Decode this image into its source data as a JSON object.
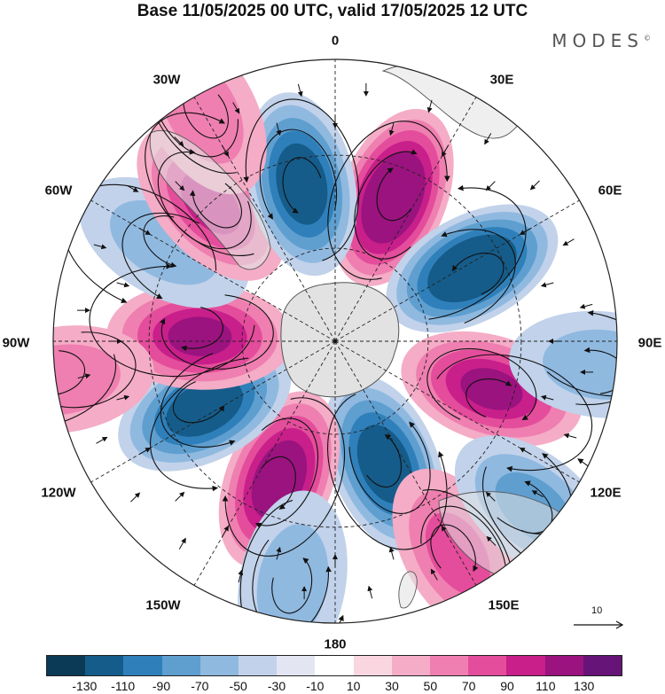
{
  "title": "Base 11/05/2025 00 UTC, valid 17/05/2025 12 UTC",
  "brand": "MODES",
  "brand_mark": "©",
  "map": {
    "projection": "south-polar-stereographic",
    "coastline_color": "#444444",
    "land_mask_color": "#dcdcdc",
    "longitude_labels": [
      {
        "key": "0",
        "text": "0"
      },
      {
        "key": "30E",
        "text": "30E"
      },
      {
        "key": "60E",
        "text": "60E"
      },
      {
        "key": "90E",
        "text": "90E"
      },
      {
        "key": "120E",
        "text": "120E"
      },
      {
        "key": "150E",
        "text": "150E"
      },
      {
        "key": "180",
        "text": "180"
      },
      {
        "key": "150W",
        "text": "150W"
      },
      {
        "key": "120W",
        "text": "120W"
      },
      {
        "key": "90W",
        "text": "90W"
      },
      {
        "key": "60W",
        "text": "60W"
      },
      {
        "key": "30W",
        "text": "30W"
      }
    ],
    "anomaly_centers": [
      {
        "sign": "positive",
        "bearing_deg": 22,
        "radius": 0.55,
        "magnitude": 130
      },
      {
        "sign": "negative",
        "bearing_deg": 62,
        "radius": 0.55,
        "magnitude": 130
      },
      {
        "sign": "positive",
        "bearing_deg": 107,
        "radius": 0.58,
        "magnitude": 90
      },
      {
        "sign": "negative",
        "bearing_deg": 158,
        "radius": 0.47,
        "magnitude": 110
      },
      {
        "sign": "positive",
        "bearing_deg": 150,
        "radius": 0.87,
        "magnitude": 50
      },
      {
        "sign": "positive",
        "bearing_deg": 202,
        "radius": 0.53,
        "magnitude": 110
      },
      {
        "sign": "negative",
        "bearing_deg": 190,
        "radius": 0.87,
        "magnitude": 30
      },
      {
        "sign": "negative",
        "bearing_deg": 243,
        "radius": 0.52,
        "magnitude": 110
      },
      {
        "sign": "positive",
        "bearing_deg": 272,
        "radius": 0.48,
        "magnitude": 90
      },
      {
        "sign": "negative",
        "bearing_deg": 300,
        "radius": 0.7,
        "magnitude": 30
      },
      {
        "sign": "positive",
        "bearing_deg": 318,
        "radius": 0.66,
        "magnitude": 70
      },
      {
        "sign": "negative",
        "bearing_deg": 348,
        "radius": 0.57,
        "magnitude": 110
      },
      {
        "sign": "negative",
        "bearing_deg": 95,
        "radius": 0.95,
        "magnitude": 30
      },
      {
        "sign": "negative",
        "bearing_deg": 130,
        "radius": 0.92,
        "magnitude": 50
      },
      {
        "sign": "positive",
        "bearing_deg": 262,
        "radius": 0.98,
        "magnitude": 30
      },
      {
        "sign": "positive",
        "bearing_deg": 330,
        "radius": 0.95,
        "magnitude": 30
      }
    ]
  },
  "reference_vector": {
    "label": "10"
  },
  "colorbar": {
    "colors": [
      "#0b3a56",
      "#155c8a",
      "#2f80ba",
      "#5f9fd0",
      "#90b9e0",
      "#c1d2ea",
      "#e3e6f2",
      "#ffffff",
      "#fad6e1",
      "#f5acc6",
      "#ef7fb0",
      "#e44d9b",
      "#c81f8b",
      "#9a137f",
      "#661478"
    ],
    "tick_labels": [
      "-130",
      "-110",
      "-90",
      "-70",
      "-50",
      "-30",
      "-10",
      "10",
      "30",
      "50",
      "70",
      "90",
      "110",
      "130"
    ]
  }
}
